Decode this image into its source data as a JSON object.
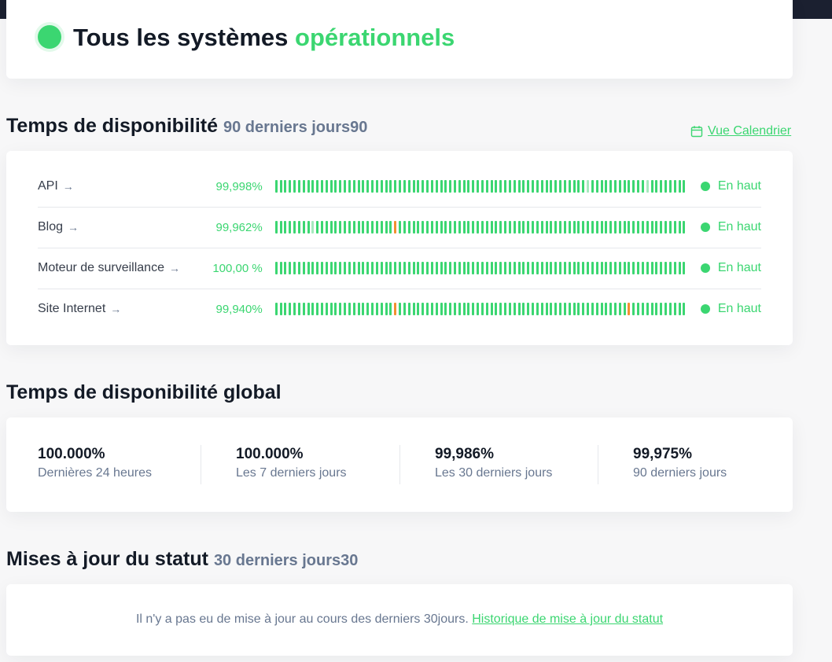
{
  "hero": {
    "title_main": "Tous les systèmes",
    "title_accent": "opérationnels",
    "color": "#3bd671"
  },
  "uptime": {
    "title": "Temps de disponibilité",
    "subtitle": "90 derniers jours90",
    "calendar_link": "Vue Calendrier",
    "calendar_icon": "calendar-icon",
    "monitors": [
      {
        "name": "API",
        "percent": "99,998%",
        "status": "En haut",
        "light_bars": [
          68,
          81
        ],
        "orange_bars": []
      },
      {
        "name": "Blog",
        "percent": "99,962%",
        "status": "En haut",
        "light_bars": [
          8
        ],
        "orange_bars": [
          26
        ]
      },
      {
        "name": "Moteur de surveillance",
        "percent": "100,00 %",
        "status": "En haut",
        "light_bars": [],
        "orange_bars": []
      },
      {
        "name": "Site Internet",
        "percent": "99,940%",
        "status": "En haut",
        "light_bars": [],
        "orange_bars": [
          26,
          77
        ]
      }
    ],
    "bar_count": 90
  },
  "global": {
    "title": "Temps de disponibilité global",
    "stats": [
      {
        "value": "100.000%",
        "label": "Dernières 24 heures"
      },
      {
        "value": "100.000%",
        "label": "Les 7 derniers jours"
      },
      {
        "value": "99,986%",
        "label": "Les 30 derniers jours"
      },
      {
        "value": "99,975%",
        "label": "90 derniers jours"
      }
    ]
  },
  "updates": {
    "title": "Mises à jour du statut",
    "subtitle": "30 derniers jours30",
    "message": "Il n'y a pas eu de mise à jour au cours des derniers 30jours.",
    "history_link": "Historique de mise à jour du statut"
  },
  "colors": {
    "up": "#3bd671",
    "partial": "#a6e9be",
    "incident": "#f29030"
  }
}
